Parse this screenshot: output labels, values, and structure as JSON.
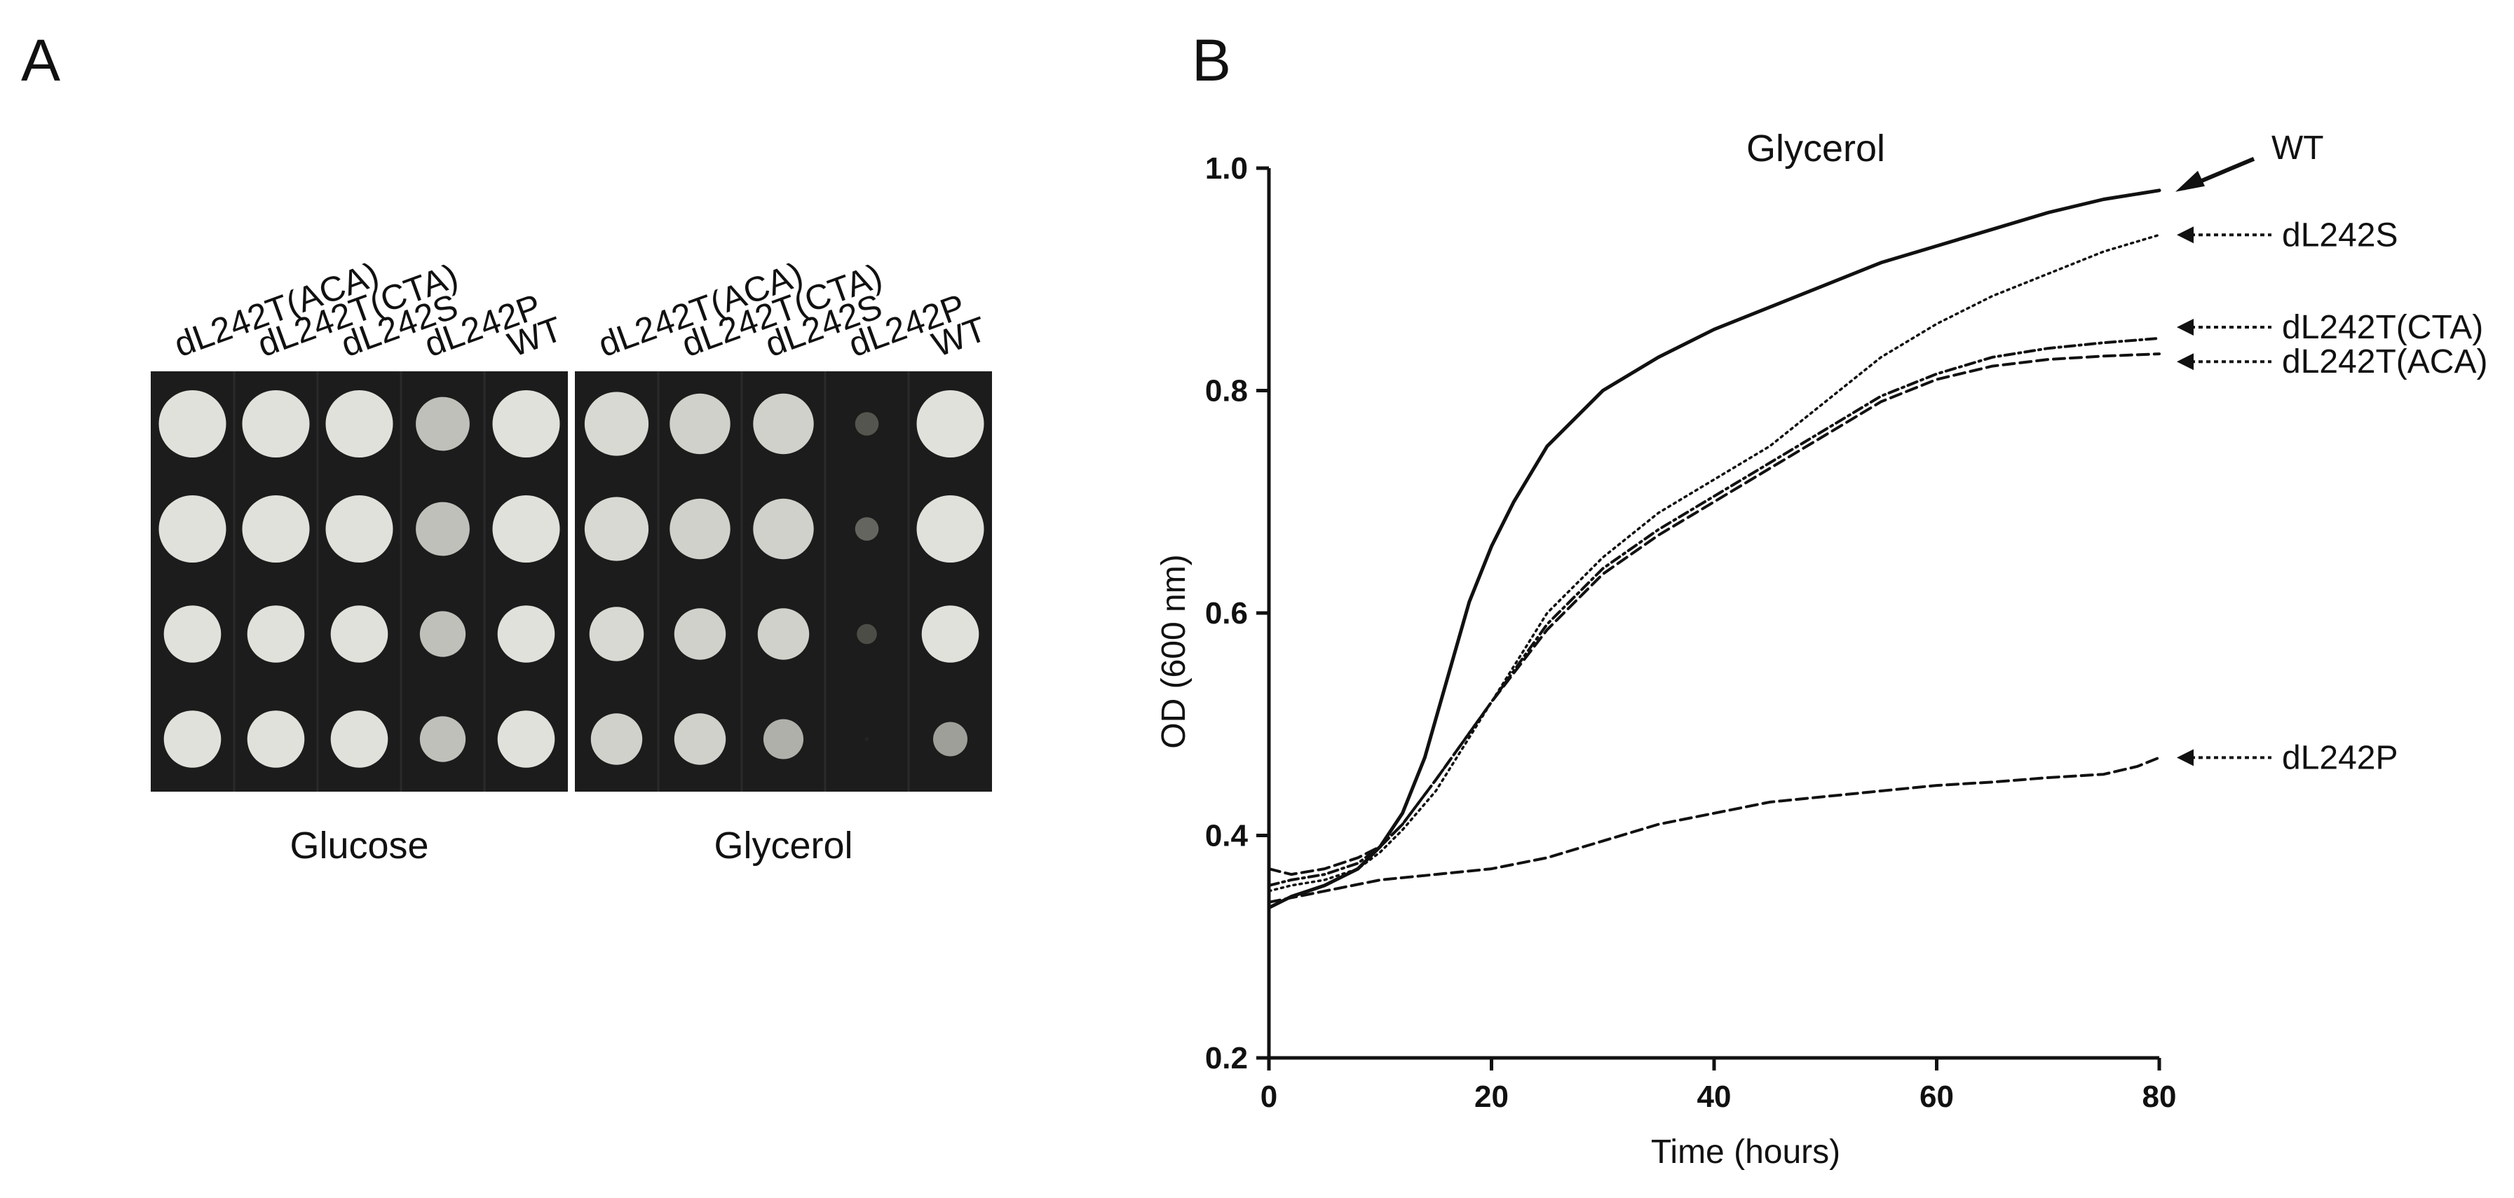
{
  "panel_a": {
    "label": "A",
    "strains": [
      "dL242T(ACA)",
      "dL242T(CTA)",
      "dL242S",
      "dL242P",
      "WT"
    ],
    "plates": [
      {
        "caption": "Glucose",
        "growth": [
          [
            1.0,
            1.0,
            1.0,
            1.0
          ],
          [
            1.0,
            1.0,
            1.0,
            1.0
          ],
          [
            1.0,
            1.0,
            1.0,
            1.0
          ],
          [
            0.8,
            0.8,
            0.8,
            0.8
          ],
          [
            1.0,
            1.0,
            1.0,
            1.0
          ]
        ]
      },
      {
        "caption": "Glycerol",
        "growth": [
          [
            0.95,
            0.95,
            0.95,
            0.9
          ],
          [
            0.9,
            0.9,
            0.9,
            0.9
          ],
          [
            0.9,
            0.9,
            0.9,
            0.7
          ],
          [
            0.15,
            0.25,
            0.1,
            0.0
          ],
          [
            1.0,
            1.0,
            1.0,
            0.6
          ]
        ]
      }
    ]
  },
  "panel_b": {
    "label": "B"
  },
  "chart_data": {
    "type": "line",
    "title": "Glycerol",
    "xlabel": "Time (hours)",
    "ylabel": "OD (600 nm)",
    "xlim": [
      0,
      80
    ],
    "ylim": [
      0.2,
      1.0
    ],
    "xticks": [
      "0",
      "20",
      "40",
      "60",
      "80"
    ],
    "yticks": [
      "0.2",
      "0.4",
      "0.6",
      "0.8",
      "1.0"
    ],
    "series": [
      {
        "name": "WT",
        "style": "solid",
        "x": [
          0,
          2,
          5,
          8,
          10,
          12,
          14,
          16,
          18,
          20,
          22,
          25,
          30,
          35,
          40,
          45,
          50,
          55,
          60,
          65,
          70,
          75,
          80
        ],
        "y": [
          0.335,
          0.345,
          0.355,
          0.37,
          0.39,
          0.42,
          0.47,
          0.54,
          0.61,
          0.66,
          0.7,
          0.75,
          0.8,
          0.83,
          0.855,
          0.875,
          0.895,
          0.915,
          0.93,
          0.945,
          0.96,
          0.972,
          0.98
        ]
      },
      {
        "name": "dL242S",
        "style": "dotted",
        "x": [
          0,
          2,
          5,
          8,
          10,
          12,
          15,
          20,
          25,
          30,
          35,
          40,
          45,
          50,
          55,
          60,
          65,
          70,
          75,
          80
        ],
        "y": [
          0.35,
          0.355,
          0.36,
          0.37,
          0.385,
          0.405,
          0.44,
          0.52,
          0.6,
          0.65,
          0.69,
          0.72,
          0.75,
          0.79,
          0.83,
          0.86,
          0.885,
          0.905,
          0.925,
          0.94
        ]
      },
      {
        "name": "dL242T(CTA)",
        "style": "dashdot",
        "x": [
          0,
          2,
          5,
          8,
          10,
          12,
          15,
          20,
          25,
          30,
          35,
          40,
          45,
          50,
          55,
          60,
          65,
          70,
          75,
          80
        ],
        "y": [
          0.355,
          0.36,
          0.365,
          0.375,
          0.39,
          0.41,
          0.45,
          0.52,
          0.59,
          0.64,
          0.675,
          0.705,
          0.735,
          0.765,
          0.795,
          0.815,
          0.83,
          0.838,
          0.843,
          0.847
        ]
      },
      {
        "name": "dL242T(ACA)",
        "style": "dashed",
        "x": [
          0,
          2,
          5,
          8,
          10,
          12,
          15,
          20,
          25,
          30,
          35,
          40,
          45,
          50,
          55,
          60,
          65,
          70,
          75,
          80
        ],
        "y": [
          0.37,
          0.365,
          0.37,
          0.38,
          0.39,
          0.41,
          0.45,
          0.52,
          0.585,
          0.635,
          0.67,
          0.7,
          0.73,
          0.76,
          0.79,
          0.81,
          0.822,
          0.828,
          0.831,
          0.833
        ]
      },
      {
        "name": "dL242P",
        "style": "dashed",
        "x": [
          0,
          5,
          10,
          15,
          20,
          25,
          30,
          35,
          40,
          45,
          50,
          55,
          60,
          65,
          70,
          75,
          78,
          80
        ],
        "y": [
          0.34,
          0.35,
          0.36,
          0.365,
          0.37,
          0.38,
          0.395,
          0.41,
          0.42,
          0.43,
          0.435,
          0.44,
          0.445,
          0.448,
          0.452,
          0.455,
          0.462,
          0.47
        ]
      }
    ],
    "legend": [
      {
        "label": "WT",
        "y": 0.98
      },
      {
        "label": "dL242S",
        "y": 0.94
      },
      {
        "label": "dL242T(CTA)",
        "y": 0.857
      },
      {
        "label": "dL242T(ACA)",
        "y": 0.826
      },
      {
        "label": "dL242P",
        "y": 0.47
      }
    ]
  }
}
